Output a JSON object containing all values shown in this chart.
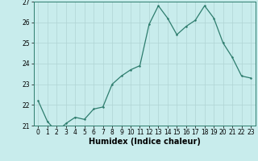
{
  "x": [
    0,
    1,
    2,
    3,
    4,
    5,
    6,
    7,
    8,
    9,
    10,
    11,
    12,
    13,
    14,
    15,
    16,
    17,
    18,
    19,
    20,
    21,
    22,
    23
  ],
  "y": [
    22.2,
    21.2,
    20.7,
    21.1,
    21.4,
    21.3,
    21.8,
    21.9,
    23.0,
    23.4,
    23.7,
    23.9,
    25.9,
    26.8,
    26.2,
    25.4,
    25.8,
    26.1,
    26.8,
    26.2,
    25.0,
    24.3,
    23.4,
    23.3
  ],
  "line_color": "#2e7d6e",
  "marker_color": "#2e7d6e",
  "bg_color": "#c8ecec",
  "grid_color": "#b0d4d4",
  "xlabel": "Humidex (Indice chaleur)",
  "ylim": [
    21,
    27
  ],
  "xlim_min": -0.5,
  "xlim_max": 23.5,
  "yticks": [
    21,
    22,
    23,
    24,
    25,
    26,
    27
  ],
  "xticks": [
    0,
    1,
    2,
    3,
    4,
    5,
    6,
    7,
    8,
    9,
    10,
    11,
    12,
    13,
    14,
    15,
    16,
    17,
    18,
    19,
    20,
    21,
    22,
    23
  ],
  "tick_fontsize": 5.5,
  "label_fontsize": 7.0,
  "line_width": 0.9,
  "marker_size": 2.5
}
